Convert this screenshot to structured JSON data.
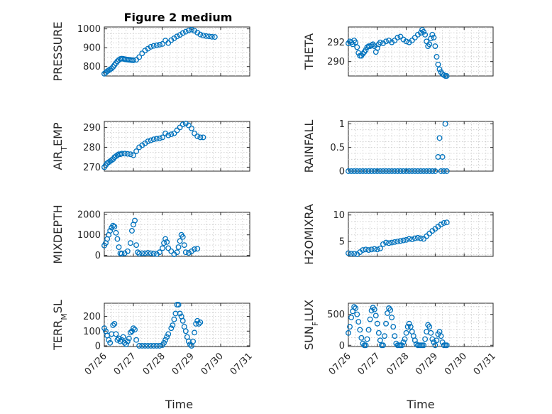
{
  "figure": {
    "title": "Figure 2 medium",
    "marker_color": "#0072BD",
    "grid": "dotted major and minor",
    "x_common_label": "Time"
  },
  "chart_data": [
    {
      "type": "scatter",
      "ylabel": "PRESSURE",
      "xlim": [
        "07/26",
        "07/31"
      ],
      "ylim": [
        750,
        1010
      ],
      "yticks": [
        800,
        900,
        1000
      ],
      "x_tick_labels_shown": false,
      "series": [
        {
          "x_days": [
            0.0,
            0.05,
            0.1,
            0.15,
            0.2,
            0.25,
            0.3,
            0.35,
            0.4,
            0.45,
            0.5,
            0.55,
            0.6,
            0.65,
            0.7,
            0.75,
            0.8,
            0.85,
            0.9,
            0.95,
            1.0,
            1.1,
            1.2,
            1.3,
            1.4,
            1.5,
            1.6,
            1.7,
            1.8,
            1.9,
            2.0,
            2.1,
            2.2,
            2.3,
            2.4,
            2.5,
            2.6,
            2.7,
            2.8,
            2.9,
            3.0,
            3.1,
            3.2,
            3.3,
            3.4,
            3.5,
            3.6,
            3.7,
            3.8
          ],
          "values": [
            762,
            768,
            775,
            780,
            785,
            790,
            798,
            808,
            818,
            828,
            835,
            840,
            842,
            841,
            839,
            838,
            837,
            836,
            835,
            834,
            833,
            836,
            850,
            870,
            885,
            895,
            905,
            910,
            913,
            916,
            920,
            938,
            925,
            940,
            950,
            960,
            968,
            978,
            985,
            992,
            996,
            990,
            980,
            970,
            965,
            962,
            960,
            958,
            957
          ]
        }
      ]
    },
    {
      "type": "scatter",
      "ylabel": "THETA",
      "xlim": [
        "07/26",
        "07/31"
      ],
      "ylim": [
        288.5,
        293.6
      ],
      "yticks": [
        290,
        292
      ],
      "x_tick_labels_shown": false,
      "series": [
        {
          "x_days": [
            0.0,
            0.05,
            0.1,
            0.15,
            0.2,
            0.25,
            0.3,
            0.35,
            0.4,
            0.45,
            0.5,
            0.55,
            0.6,
            0.65,
            0.7,
            0.75,
            0.8,
            0.85,
            0.9,
            0.95,
            1.0,
            1.05,
            1.1,
            1.2,
            1.3,
            1.4,
            1.5,
            1.6,
            1.7,
            1.8,
            1.9,
            2.0,
            2.1,
            2.2,
            2.3,
            2.4,
            2.5,
            2.55,
            2.6,
            2.65,
            2.7,
            2.75,
            2.8,
            2.85,
            2.9,
            2.95,
            3.0,
            3.05,
            3.1,
            3.15,
            3.2,
            3.25,
            3.3,
            3.35,
            3.4
          ],
          "values": [
            291.9,
            292.1,
            292.0,
            291.8,
            292.2,
            292.0,
            291.5,
            290.9,
            290.6,
            290.6,
            290.8,
            291.0,
            291.2,
            291.5,
            291.6,
            291.6,
            291.7,
            291.8,
            291.6,
            291.0,
            291.4,
            291.8,
            292.0,
            291.9,
            292.1,
            292.2,
            292.0,
            292.2,
            292.5,
            292.6,
            292.3,
            292.1,
            292.0,
            292.2,
            292.5,
            292.8,
            293.0,
            293.3,
            293.1,
            292.8,
            292.1,
            291.6,
            291.8,
            292.4,
            292.8,
            292.5,
            291.6,
            290.5,
            289.7,
            289.2,
            288.9,
            288.7,
            288.6,
            288.5,
            288.5
          ]
        }
      ]
    },
    {
      "type": "scatter",
      "ylabel": "AIR_TEMP",
      "xlim": [
        "07/26",
        "07/31"
      ],
      "ylim": [
        268,
        293
      ],
      "yticks": [
        270,
        280,
        290
      ],
      "x_tick_labels_shown": false,
      "series": [
        {
          "x_days": [
            0.0,
            0.05,
            0.1,
            0.15,
            0.2,
            0.25,
            0.3,
            0.35,
            0.4,
            0.45,
            0.5,
            0.55,
            0.6,
            0.7,
            0.8,
            0.9,
            1.0,
            1.1,
            1.2,
            1.3,
            1.4,
            1.5,
            1.6,
            1.7,
            1.8,
            1.9,
            2.0,
            2.1,
            2.2,
            2.3,
            2.4,
            2.5,
            2.6,
            2.7,
            2.8,
            2.9,
            3.0,
            3.1,
            3.2,
            3.3,
            3.4
          ],
          "values": [
            270,
            271,
            272,
            272.5,
            273,
            273.5,
            274,
            275,
            275.5,
            276,
            276.5,
            276.5,
            276.8,
            276.8,
            276.7,
            276.5,
            276,
            278,
            280,
            281,
            282,
            283,
            283.5,
            284,
            284.3,
            284.5,
            285,
            287,
            286,
            286.5,
            287,
            288.5,
            290,
            291.5,
            292,
            291,
            289.5,
            287,
            285.5,
            285,
            285
          ]
        }
      ]
    },
    {
      "type": "scatter",
      "ylabel": "RAINFALL",
      "xlim": [
        "07/26",
        "07/31"
      ],
      "ylim": [
        0,
        1.05
      ],
      "yticks": [
        0,
        0.5,
        1
      ],
      "x_tick_labels_shown": false,
      "series": [
        {
          "x_days": [
            0.0,
            0.1,
            0.2,
            0.3,
            0.4,
            0.5,
            0.6,
            0.7,
            0.8,
            0.9,
            1.0,
            1.1,
            1.2,
            1.3,
            1.4,
            1.5,
            1.6,
            1.7,
            1.8,
            1.9,
            2.0,
            2.1,
            2.2,
            2.3,
            2.4,
            2.5,
            2.6,
            2.7,
            2.8,
            2.9,
            3.0,
            3.1,
            3.15,
            3.2,
            3.25,
            3.3,
            3.35,
            3.4
          ],
          "values": [
            0,
            0,
            0,
            0,
            0,
            0,
            0,
            0,
            0,
            0,
            0,
            0,
            0,
            0,
            0,
            0,
            0,
            0,
            0,
            0,
            0,
            0,
            0,
            0,
            0,
            0,
            0,
            0,
            0,
            0,
            0,
            0.3,
            0.7,
            0,
            0.3,
            0,
            1.0,
            0
          ]
        }
      ]
    },
    {
      "type": "scatter",
      "ylabel": "MIXDEPTH",
      "xlim": [
        "07/26",
        "07/31"
      ],
      "ylim": [
        -50,
        2100
      ],
      "yticks": [
        0,
        1000,
        2000
      ],
      "x_tick_labels_shown": false,
      "series": [
        {
          "x_days": [
            0.0,
            0.05,
            0.1,
            0.15,
            0.2,
            0.25,
            0.3,
            0.35,
            0.4,
            0.45,
            0.5,
            0.55,
            0.6,
            0.7,
            0.8,
            0.9,
            0.95,
            1.0,
            1.05,
            1.1,
            1.15,
            1.2,
            1.3,
            1.4,
            1.5,
            1.6,
            1.7,
            1.8,
            1.9,
            2.0,
            2.05,
            2.1,
            2.15,
            2.2,
            2.3,
            2.4,
            2.5,
            2.55,
            2.6,
            2.65,
            2.7,
            2.75,
            2.8,
            2.9,
            3.0,
            3.1,
            3.2
          ],
          "values": [
            480,
            600,
            800,
            1000,
            1200,
            1350,
            1450,
            1400,
            1100,
            800,
            400,
            100,
            80,
            100,
            200,
            600,
            1200,
            1500,
            1700,
            500,
            150,
            80,
            100,
            100,
            120,
            100,
            80,
            60,
            150,
            350,
            600,
            800,
            650,
            350,
            200,
            50,
            150,
            400,
            700,
            1000,
            900,
            500,
            150,
            120,
            200,
            300,
            320
          ]
        }
      ]
    },
    {
      "type": "scatter",
      "ylabel": "H2OMIXRA",
      "xlim": [
        "07/26",
        "07/31"
      ],
      "ylim": [
        2.2,
        10.5
      ],
      "yticks": [
        5,
        10
      ],
      "x_tick_labels_shown": false,
      "series": [
        {
          "x_days": [
            0.0,
            0.1,
            0.2,
            0.3,
            0.4,
            0.5,
            0.6,
            0.7,
            0.8,
            0.9,
            1.0,
            1.1,
            1.2,
            1.3,
            1.4,
            1.5,
            1.6,
            1.7,
            1.8,
            1.9,
            2.0,
            2.1,
            2.2,
            2.3,
            2.4,
            2.5,
            2.6,
            2.7,
            2.8,
            2.9,
            3.0,
            3.1,
            3.2,
            3.3,
            3.4
          ],
          "values": [
            2.8,
            2.7,
            2.7,
            2.6,
            3.0,
            3.4,
            3.5,
            3.4,
            3.5,
            3.6,
            3.5,
            3.7,
            4.5,
            4.8,
            4.7,
            4.8,
            4.9,
            5.0,
            5.1,
            5.2,
            5.3,
            5.5,
            5.4,
            5.6,
            5.7,
            5.6,
            5.5,
            6.0,
            6.5,
            7.0,
            7.4,
            7.8,
            8.2,
            8.5,
            8.6
          ]
        }
      ]
    },
    {
      "type": "scatter",
      "ylabel": "TERR_MSL",
      "xlim": [
        "07/26",
        "07/31"
      ],
      "ylim": [
        -5,
        290
      ],
      "yticks": [
        0,
        100,
        200
      ],
      "xticks": [
        "07/26",
        "07/27",
        "07/28",
        "07/29",
        "07/30",
        "07/31"
      ],
      "x_tick_labels_shown": true,
      "xlabel": "Time",
      "series": [
        {
          "x_days": [
            0.0,
            0.05,
            0.1,
            0.15,
            0.2,
            0.25,
            0.3,
            0.35,
            0.4,
            0.45,
            0.5,
            0.55,
            0.6,
            0.65,
            0.7,
            0.75,
            0.8,
            0.85,
            0.9,
            0.95,
            1.0,
            1.05,
            1.1,
            1.2,
            1.3,
            1.4,
            1.5,
            1.6,
            1.7,
            1.8,
            1.9,
            2.0,
            2.05,
            2.1,
            2.15,
            2.2,
            2.3,
            2.35,
            2.4,
            2.45,
            2.5,
            2.55,
            2.6,
            2.65,
            2.7,
            2.75,
            2.8,
            2.85,
            2.9,
            2.95,
            3.0,
            3.05,
            3.1,
            3.15,
            3.2,
            3.25,
            3.3
          ],
          "values": [
            120,
            100,
            70,
            40,
            20,
            80,
            140,
            150,
            80,
            40,
            50,
            30,
            40,
            60,
            20,
            10,
            30,
            50,
            90,
            100,
            120,
            110,
            40,
            0,
            0,
            0,
            0,
            0,
            0,
            0,
            0,
            5,
            20,
            40,
            60,
            80,
            120,
            140,
            180,
            220,
            280,
            280,
            220,
            200,
            170,
            130,
            100,
            60,
            30,
            10,
            0,
            30,
            90,
            150,
            170,
            150,
            160
          ]
        }
      ]
    },
    {
      "type": "scatter",
      "ylabel": "SUN_FLUX",
      "xlim": [
        "07/26",
        "07/31"
      ],
      "ylim": [
        -20,
        680
      ],
      "yticks": [
        0,
        500
      ],
      "xticks": [
        "07/26",
        "07/27",
        "07/28",
        "07/29",
        "07/30",
        "07/31"
      ],
      "x_tick_labels_shown": true,
      "xlabel": "Time",
      "series": [
        {
          "x_days": [
            0.0,
            0.05,
            0.1,
            0.15,
            0.2,
            0.25,
            0.3,
            0.35,
            0.4,
            0.45,
            0.5,
            0.55,
            0.6,
            0.65,
            0.7,
            0.75,
            0.8,
            0.85,
            0.9,
            0.95,
            1.0,
            1.05,
            1.1,
            1.15,
            1.2,
            1.25,
            1.3,
            1.35,
            1.4,
            1.45,
            1.5,
            1.55,
            1.6,
            1.65,
            1.7,
            1.75,
            1.8,
            1.85,
            1.9,
            1.95,
            2.0,
            2.05,
            2.1,
            2.15,
            2.2,
            2.25,
            2.3,
            2.35,
            2.4,
            2.45,
            2.5,
            2.55,
            2.6,
            2.65,
            2.7,
            2.75,
            2.8,
            2.85,
            2.9,
            2.95,
            3.0,
            3.05,
            3.1,
            3.15,
            3.2,
            3.25,
            3.3,
            3.35,
            3.4
          ],
          "values": [
            200,
            300,
            450,
            550,
            620,
            600,
            500,
            380,
            250,
            120,
            30,
            0,
            0,
            100,
            250,
            420,
            560,
            610,
            580,
            480,
            350,
            200,
            80,
            0,
            0,
            150,
            350,
            520,
            600,
            570,
            450,
            300,
            150,
            30,
            0,
            0,
            0,
            0,
            50,
            100,
            200,
            300,
            350,
            300,
            220,
            150,
            80,
            20,
            0,
            0,
            0,
            0,
            0,
            100,
            220,
            330,
            300,
            200,
            100,
            50,
            0,
            80,
            180,
            220,
            150,
            50,
            0,
            0,
            0
          ]
        }
      ]
    }
  ]
}
